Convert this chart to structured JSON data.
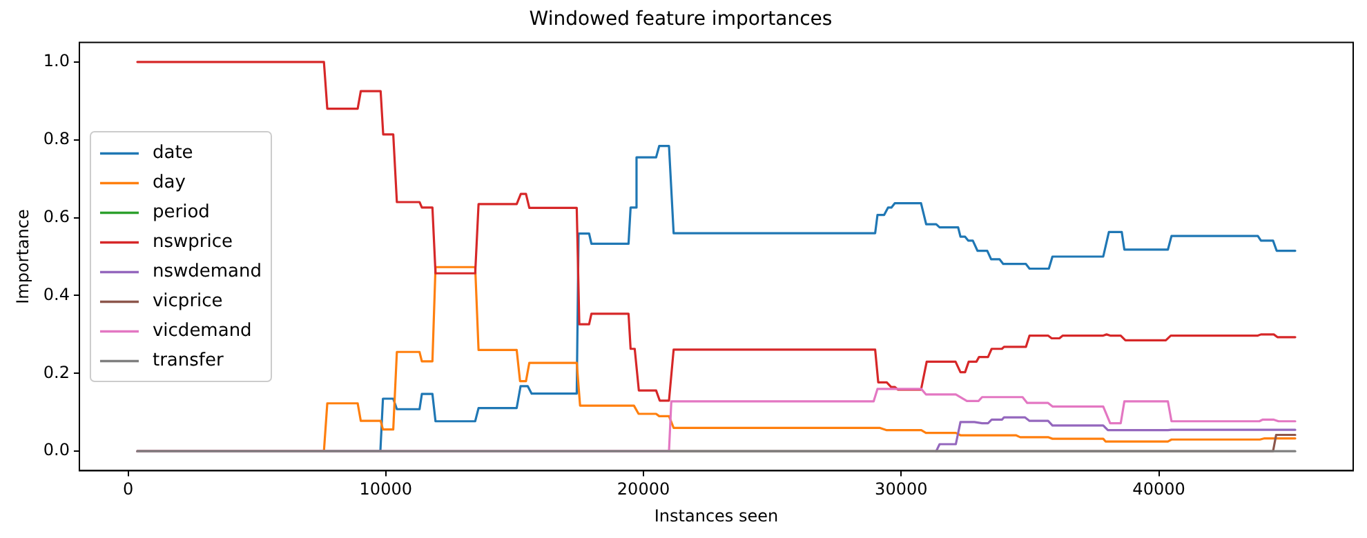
{
  "chart_data": {
    "type": "line",
    "title": "Windowed feature importances",
    "xlabel": "Instances seen",
    "ylabel": "Importance",
    "xlim": [
      -1890,
      47540
    ],
    "ylim": [
      -0.05,
      1.05
    ],
    "xticks": [
      0,
      10000,
      20000,
      30000,
      40000
    ],
    "yticks": [
      {
        "value": 0,
        "label": "0.0"
      },
      {
        "value": 0.2,
        "label": "0.2"
      },
      {
        "value": 0.4,
        "label": "0.4"
      },
      {
        "value": 0.6,
        "label": "0.6"
      },
      {
        "value": 0.8,
        "label": "0.8"
      },
      {
        "value": 1,
        "label": "1.0"
      }
    ],
    "grid": false,
    "legend": "center left",
    "marker": "none",
    "line_style": "solid",
    "series": [
      {
        "name": "date",
        "color": "#1f77b4",
        "x": [
          360,
          9790,
          9890,
          10290,
          10430,
          11310,
          11400,
          11810,
          11930,
          13470,
          13600,
          15080,
          15230,
          15510,
          15660,
          17410,
          17480,
          17890,
          17980,
          19420,
          19500,
          19680,
          19730,
          20490,
          20610,
          20990,
          21170,
          28990,
          29080,
          29340,
          29490,
          29620,
          29750,
          30770,
          30970,
          31360,
          31490,
          32210,
          32300,
          32480,
          32600,
          32780,
          32960,
          33340,
          33490,
          33820,
          33960,
          34840,
          34980,
          35730,
          35870,
          37840,
          38060,
          38560,
          38660,
          40350,
          40490,
          43840,
          43960,
          44430,
          44570,
          45290
        ],
        "values": [
          0,
          0,
          0.135,
          0.135,
          0.108,
          0.108,
          0.147,
          0.147,
          0.077,
          0.077,
          0.111,
          0.111,
          0.167,
          0.167,
          0.148,
          0.148,
          0.559,
          0.559,
          0.533,
          0.533,
          0.626,
          0.626,
          0.755,
          0.755,
          0.784,
          0.784,
          0.56,
          0.56,
          0.607,
          0.607,
          0.626,
          0.626,
          0.637,
          0.637,
          0.583,
          0.583,
          0.575,
          0.575,
          0.551,
          0.551,
          0.541,
          0.541,
          0.515,
          0.515,
          0.493,
          0.493,
          0.481,
          0.481,
          0.469,
          0.469,
          0.5,
          0.5,
          0.563,
          0.563,
          0.518,
          0.518,
          0.553,
          0.553,
          0.541,
          0.541,
          0.515,
          0.515
        ]
      },
      {
        "name": "day",
        "color": "#ff7f0e",
        "x": [
          360,
          7600,
          7730,
          8910,
          9030,
          9800,
          9890,
          10290,
          10430,
          11310,
          11400,
          11810,
          11930,
          13470,
          13600,
          15080,
          15210,
          15440,
          15570,
          17410,
          17540,
          19630,
          19810,
          20490,
          20610,
          20990,
          21170,
          29160,
          29440,
          30780,
          30960,
          32120,
          32300,
          34450,
          34620,
          35700,
          35870,
          37840,
          37930,
          40350,
          40490,
          43920,
          44100,
          45290
        ],
        "values": [
          0,
          0,
          0.123,
          0.123,
          0.078,
          0.078,
          0.056,
          0.056,
          0.255,
          0.255,
          0.231,
          0.231,
          0.473,
          0.473,
          0.26,
          0.26,
          0.18,
          0.18,
          0.227,
          0.227,
          0.117,
          0.117,
          0.096,
          0.096,
          0.09,
          0.09,
          0.06,
          0.06,
          0.054,
          0.054,
          0.047,
          0.047,
          0.041,
          0.041,
          0.036,
          0.036,
          0.032,
          0.032,
          0.025,
          0.025,
          0.03,
          0.03,
          0.033,
          0.033
        ]
      },
      {
        "name": "period",
        "color": "#2ca02c"
      },
      {
        "name": "nswprice",
        "color": "#d62728",
        "x": [
          360,
          7600,
          7730,
          8910,
          9030,
          9800,
          9900,
          10290,
          10430,
          11310,
          11400,
          11810,
          11930,
          13470,
          13600,
          15080,
          15240,
          15440,
          15570,
          17410,
          17510,
          17890,
          17980,
          19420,
          19500,
          19660,
          19820,
          20490,
          20630,
          20990,
          21170,
          28990,
          29110,
          29440,
          29610,
          29750,
          29880,
          30770,
          30990,
          32110,
          32300,
          32480,
          32620,
          32920,
          33020,
          33370,
          33510,
          33910,
          33990,
          34840,
          34980,
          35700,
          35840,
          36140,
          36270,
          37840,
          37970,
          38110,
          38520,
          38700,
          40270,
          40460,
          43840,
          43960,
          44460,
          44600,
          45290
        ],
        "values": [
          1,
          1,
          0.88,
          0.88,
          0.925,
          0.925,
          0.814,
          0.814,
          0.64,
          0.64,
          0.626,
          0.626,
          0.457,
          0.457,
          0.635,
          0.635,
          0.661,
          0.661,
          0.625,
          0.625,
          0.326,
          0.326,
          0.353,
          0.353,
          0.263,
          0.263,
          0.156,
          0.156,
          0.13,
          0.13,
          0.261,
          0.261,
          0.177,
          0.177,
          0.165,
          0.165,
          0.158,
          0.158,
          0.23,
          0.23,
          0.203,
          0.203,
          0.23,
          0.23,
          0.242,
          0.242,
          0.263,
          0.263,
          0.268,
          0.268,
          0.297,
          0.297,
          0.29,
          0.29,
          0.297,
          0.297,
          0.3,
          0.297,
          0.297,
          0.285,
          0.285,
          0.297,
          0.297,
          0.3,
          0.3,
          0.293,
          0.293
        ]
      },
      {
        "name": "nswdemand",
        "color": "#9467bd",
        "x": [
          31360,
          31490,
          32120,
          32300,
          32840,
          33140,
          33370,
          33510,
          33910,
          33990,
          34800,
          34980,
          35700,
          35870,
          37840,
          38020,
          40350,
          40490,
          45290
        ],
        "values": [
          0,
          0.018,
          0.018,
          0.075,
          0.075,
          0.072,
          0.072,
          0.081,
          0.081,
          0.087,
          0.087,
          0.078,
          0.078,
          0.066,
          0.066,
          0.054,
          0.054,
          0.055,
          0.055
        ]
      },
      {
        "name": "vicprice",
        "color": "#8c564b",
        "x": [
          360,
          44430,
          44550,
          45290
        ],
        "values": [
          0,
          0,
          0.042,
          0.042
        ]
      },
      {
        "name": "vicdemand",
        "color": "#e377c2",
        "x": [
          360,
          20990,
          21080,
          28930,
          29080,
          30780,
          30960,
          32120,
          32550,
          33000,
          33140,
          34710,
          34890,
          35700,
          35870,
          37840,
          38110,
          38520,
          38660,
          40350,
          40490,
          43900,
          44020,
          44460,
          44640,
          45290
        ],
        "values": [
          0,
          0,
          0.128,
          0.128,
          0.16,
          0.16,
          0.146,
          0.146,
          0.129,
          0.129,
          0.139,
          0.139,
          0.124,
          0.124,
          0.115,
          0.115,
          0.072,
          0.072,
          0.128,
          0.128,
          0.077,
          0.077,
          0.081,
          0.081,
          0.077,
          0.077
        ]
      },
      {
        "name": "transfer",
        "color": "#7f7f7f",
        "x": [
          360,
          45290
        ],
        "values": [
          0,
          0
        ]
      }
    ]
  }
}
